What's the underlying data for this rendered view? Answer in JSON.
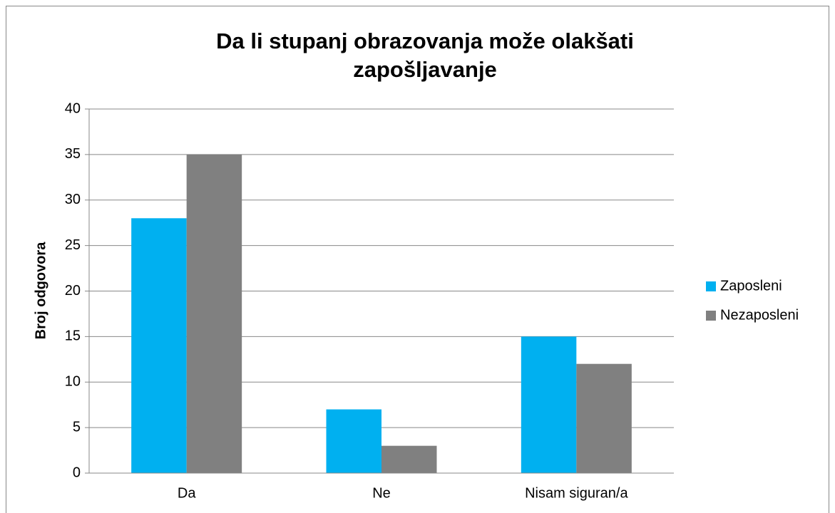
{
  "chart_data": {
    "type": "bar",
    "title": "Da li stupanj obrazovanja može olakšati zapošljavanje",
    "y_label": "Broj odgovora",
    "categories": [
      "Da",
      "Ne",
      "Nisam siguran/a"
    ],
    "series": [
      {
        "name": "Zaposleni",
        "color": "#00b0f0",
        "values": [
          28,
          7,
          15
        ]
      },
      {
        "name": "Nezaposleni",
        "color": "#808080",
        "values": [
          35,
          3,
          12
        ]
      }
    ],
    "ylim": [
      0,
      40
    ],
    "yticks": [
      0,
      5,
      10,
      15,
      20,
      25,
      30,
      35,
      40
    ],
    "grid": true,
    "legend": "right"
  }
}
